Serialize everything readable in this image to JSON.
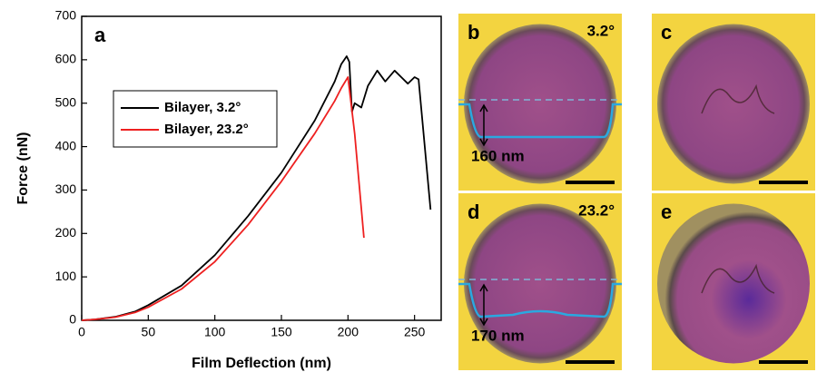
{
  "chart_data": {
    "type": "line",
    "panel_label": "a",
    "x_label": "Film Deflection (nm)",
    "y_label": "Force (nN)",
    "xlim": [
      0,
      270
    ],
    "ylim": [
      0,
      700
    ],
    "xticks": [
      0,
      50,
      100,
      150,
      200,
      250
    ],
    "yticks": [
      0,
      100,
      200,
      300,
      400,
      500,
      600,
      700
    ],
    "legend": "center left",
    "series": [
      {
        "name": "Bilayer, 3.2°",
        "color": "#000000",
        "x": [
          0,
          10,
          25,
          40,
          50,
          75,
          100,
          125,
          150,
          175,
          190,
          195,
          199,
          201,
          203,
          205,
          210,
          215,
          222,
          228,
          235,
          240,
          245,
          250,
          253,
          262
        ],
        "values": [
          0,
          2,
          8,
          20,
          35,
          80,
          150,
          240,
          340,
          460,
          550,
          590,
          608,
          595,
          480,
          500,
          490,
          540,
          575,
          550,
          575,
          560,
          545,
          560,
          555,
          255
        ]
      },
      {
        "name": "Bilayer, 23.2°",
        "color": "#ee2020",
        "x": [
          0,
          10,
          25,
          40,
          50,
          75,
          100,
          125,
          150,
          175,
          190,
          195,
          200,
          205,
          212
        ],
        "values": [
          0,
          2,
          7,
          18,
          30,
          72,
          135,
          220,
          320,
          430,
          505,
          535,
          560,
          430,
          190
        ]
      }
    ]
  },
  "panels": [
    {
      "label": "b",
      "angle": "3.2°",
      "depth": "160 nm"
    },
    {
      "label": "c"
    },
    {
      "label": "d",
      "angle": "23.2°",
      "depth": "170 nm"
    },
    {
      "label": "e"
    }
  ]
}
